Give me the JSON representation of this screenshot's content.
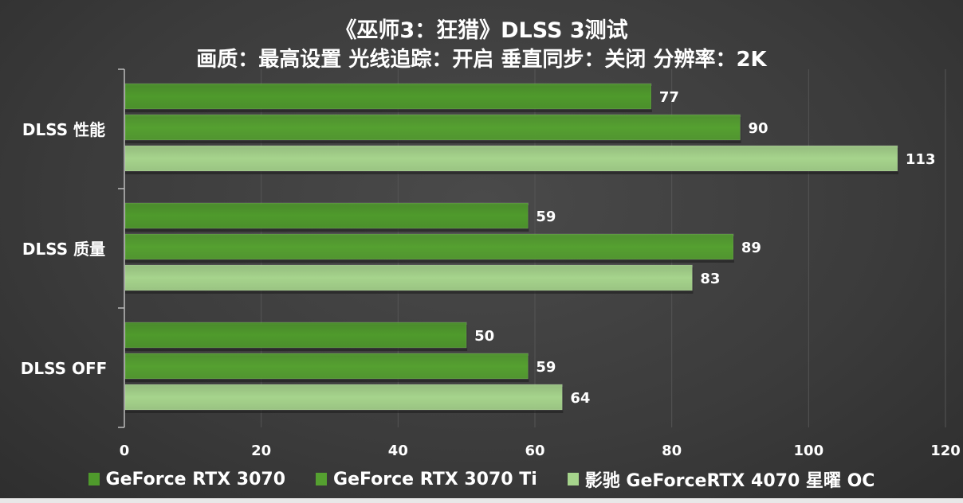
{
  "chart_data": {
    "type": "bar",
    "orientation": "horizontal",
    "title": "《巫师3：狂猎》DLSS 3测试",
    "subtitle": "画质：最高设置 光线追踪：开启  垂直同步：关闭 分辨率：2K",
    "categories": [
      "DLSS 性能",
      "DLSS 质量",
      "DLSS OFF"
    ],
    "series": [
      {
        "name": "GeForce RTX 3070",
        "color": "#4f9a2c",
        "values": [
          77,
          59,
          50
        ]
      },
      {
        "name": "GeForce RTX 3070 Ti",
        "color": "#55a030",
        "values": [
          90,
          89,
          59
        ]
      },
      {
        "name": "影驰 GeForceRTX 4070 星曜 OC",
        "color": "#a6d48c",
        "values": [
          113,
          83,
          64
        ]
      }
    ],
    "xlim": [
      0,
      120
    ],
    "xticks": [
      "0",
      "20",
      "40",
      "60",
      "80",
      "100",
      "120"
    ],
    "grid": true,
    "legend_position": "bottom",
    "data_labels": true
  }
}
